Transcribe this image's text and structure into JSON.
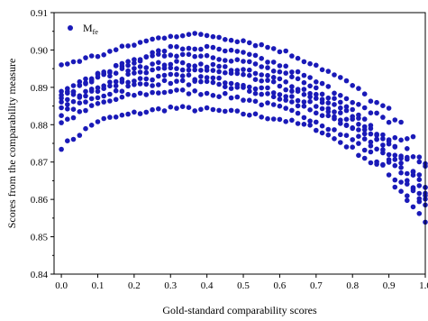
{
  "chart_data": {
    "type": "scatter",
    "xlabel": "Gold-standard comparability scores",
    "ylabel": "Scores from the comparability measure",
    "xlim": [
      -0.02,
      1.0
    ],
    "ylim": [
      0.84,
      0.91
    ],
    "x_ticks": [
      "0.0",
      "0.1",
      "0.2",
      "0.3",
      "0.4",
      "0.5",
      "0.6",
      "0.7",
      "0.8",
      "0.9",
      "1.0"
    ],
    "y_ticks": [
      "0.84",
      "0.85",
      "0.86",
      "0.87",
      "0.88",
      "0.89",
      "0.90",
      "0.91"
    ],
    "grid": false,
    "legend": {
      "position": "top-left",
      "label_main": "M",
      "label_sub": "fe",
      "marker_color": "#1a1ab8"
    },
    "marker_color": "#1a1ab8",
    "series": [
      {
        "name": "M_fe",
        "curves": [
          {
            "x": [
              0.0,
              0.1,
              0.2,
              0.3,
              0.4,
              0.5,
              0.6,
              0.7,
              0.8,
              0.9,
              1.0
            ],
            "y": [
              0.874,
              0.881,
              0.883,
              0.8845,
              0.884,
              0.883,
              0.8815,
              0.879,
              0.8735,
              0.8665,
              0.8545
            ]
          },
          {
            "x": [
              0.0,
              0.1,
              0.2,
              0.3,
              0.4,
              0.5,
              0.6,
              0.7,
              0.8,
              0.9,
              1.0
            ],
            "y": [
              0.8805,
              0.8855,
              0.888,
              0.889,
              0.8885,
              0.887,
              0.8845,
              0.881,
              0.876,
              0.8685,
              0.857
            ]
          },
          {
            "x": [
              0.0,
              0.1,
              0.2,
              0.3,
              0.4,
              0.5,
              0.6,
              0.7,
              0.8,
              0.9,
              1.0
            ],
            "y": [
              0.883,
              0.8875,
              0.8905,
              0.8915,
              0.891,
              0.8895,
              0.887,
              0.8835,
              0.8785,
              0.871,
              0.8595
            ]
          },
          {
            "x": [
              0.0,
              0.1,
              0.2,
              0.3,
              0.4,
              0.5,
              0.6,
              0.7,
              0.8,
              0.9,
              1.0
            ],
            "y": [
              0.8845,
              0.8895,
              0.892,
              0.893,
              0.8925,
              0.891,
              0.8885,
              0.885,
              0.8795,
              0.872,
              0.8605
            ]
          },
          {
            "x": [
              0.0,
              0.1,
              0.2,
              0.3,
              0.4,
              0.5,
              0.6,
              0.7,
              0.8,
              0.9,
              1.0
            ],
            "y": [
              0.886,
              0.8905,
              0.8935,
              0.895,
              0.8945,
              0.893,
              0.8905,
              0.8865,
              0.881,
              0.8735,
              0.862
            ]
          },
          {
            "x": [
              0.0,
              0.1,
              0.2,
              0.3,
              0.4,
              0.5,
              0.6,
              0.7,
              0.8,
              0.9,
              1.0
            ],
            "y": [
              0.8875,
              0.8925,
              0.8955,
              0.8965,
              0.896,
              0.8945,
              0.892,
              0.888,
              0.8825,
              0.875,
              0.8635
            ]
          },
          {
            "x": [
              0.0,
              0.1,
              0.2,
              0.3,
              0.4,
              0.5,
              0.6,
              0.7,
              0.8,
              0.9,
              1.0
            ],
            "y": [
              0.8885,
              0.8935,
              0.897,
              0.899,
              0.8985,
              0.897,
              0.894,
              0.8895,
              0.884,
              0.8765,
              0.865
            ]
          },
          {
            "x": [
              0.0,
              0.1,
              0.2,
              0.3,
              0.4,
              0.5,
              0.6,
              0.7,
              0.8,
              0.9,
              1.0
            ],
            "y": [
              0.8875,
              0.893,
              0.8975,
              0.9005,
              0.9005,
              0.899,
              0.896,
              0.8915,
              0.8865,
              0.8795,
              0.868
            ]
          },
          {
            "x": [
              0.0,
              0.1,
              0.2,
              0.3,
              0.4,
              0.5,
              0.6,
              0.7,
              0.8,
              0.9,
              1.0
            ],
            "y": [
              0.896,
              0.8985,
              0.9015,
              0.904,
              0.904,
              0.9025,
              0.9,
              0.896,
              0.8905,
              0.883,
              0.871
            ]
          }
        ]
      }
    ]
  }
}
